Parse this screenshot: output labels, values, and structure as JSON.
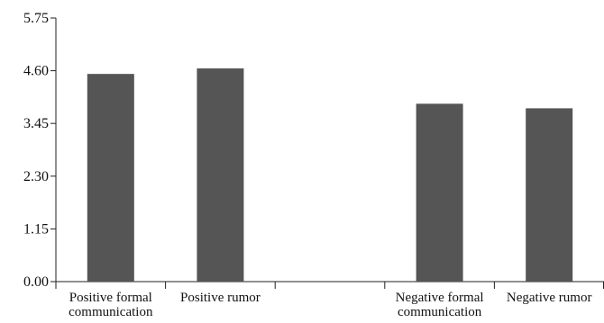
{
  "chart_data": {
    "type": "bar",
    "title": "",
    "xlabel": "",
    "ylabel": "",
    "ylim": [
      0,
      5.75
    ],
    "yticks": [
      "0.00",
      "1.15",
      "2.30",
      "3.45",
      "4.60",
      "5.75"
    ],
    "categories": [
      [
        "Positive formal",
        "communication"
      ],
      [
        "Positive rumor"
      ],
      [
        ""
      ],
      [
        "Negative formal",
        "communication"
      ],
      [
        "Negative rumor"
      ]
    ],
    "values": [
      4.53,
      4.65,
      null,
      3.88,
      3.78
    ],
    "bar_color": "#555555",
    "grid": false,
    "legend": "none"
  }
}
